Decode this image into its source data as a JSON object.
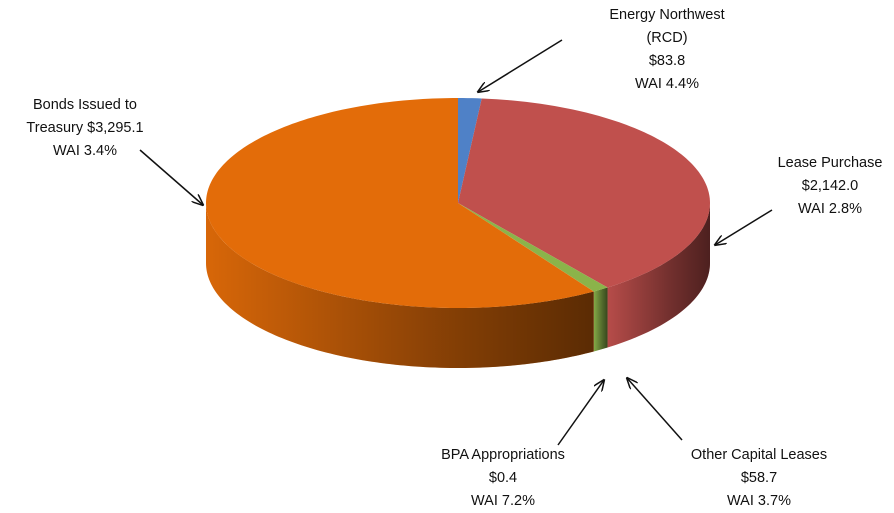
{
  "chart_data": {
    "type": "pie3d",
    "categories": [
      "Energy Northwest (RCD)",
      "Lease Purchase",
      "Other Capital Leases",
      "BPA Appropriations",
      "Bonds Issued to Treasury"
    ],
    "values": [
      83.8,
      2142.0,
      58.7,
      0.4,
      3295.1
    ],
    "value_labels": [
      "$83.8",
      "$2,142.0",
      "$58.7",
      "$0.4",
      "$3,295.1"
    ],
    "wai": [
      4.4,
      2.8,
      3.7,
      7.2,
      3.4
    ],
    "wai_labels": [
      "WAI 4.4%",
      "WAI 2.8%",
      "WAI 3.7%",
      "WAI 7.2%",
      "WAI 3.4%"
    ],
    "colors": [
      "#4f81c7",
      "#c0504d",
      "#8bb34a",
      "#9bbb59",
      "#e36c09"
    ]
  }
}
